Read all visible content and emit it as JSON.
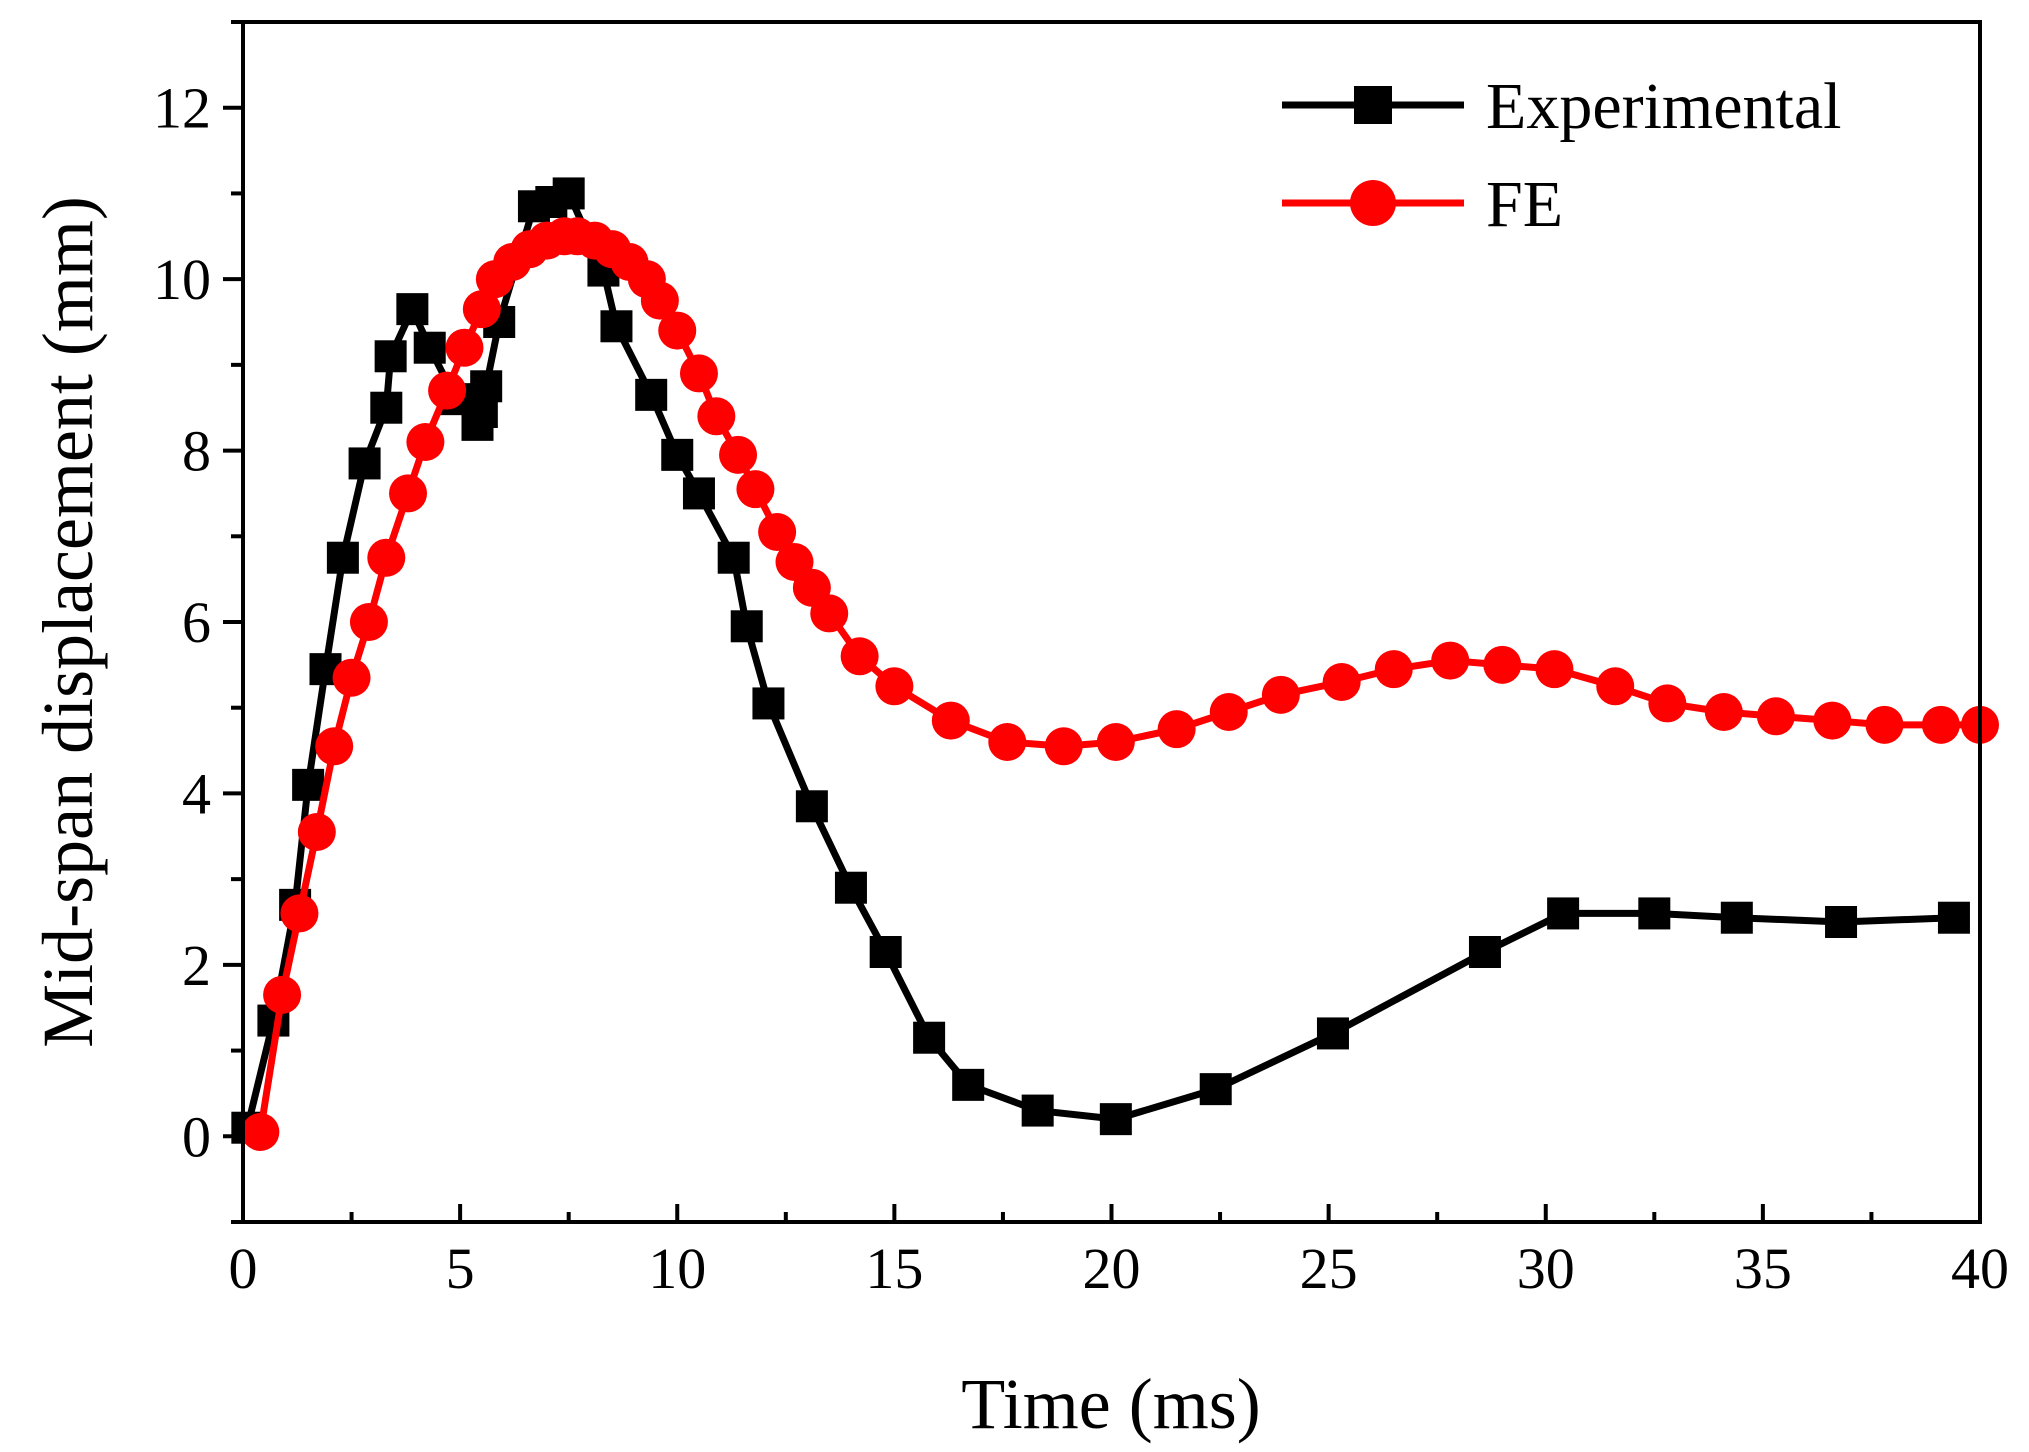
{
  "chart_data": {
    "type": "line",
    "title": "",
    "xlabel": "Time (ms)",
    "ylabel": "Mid-span displacement (mm)",
    "xlim": [
      0,
      40
    ],
    "ylim": [
      -1,
      13
    ],
    "xticks": [
      0,
      5,
      10,
      15,
      20,
      25,
      30,
      35,
      40
    ],
    "yticks": [
      0,
      2,
      4,
      6,
      8,
      10,
      12
    ],
    "x_tick_labels": [
      "0",
      "5",
      "10",
      "15",
      "20",
      "25",
      "30",
      "35",
      "40"
    ],
    "y_tick_labels": [
      "0",
      "2",
      "4",
      "6",
      "8",
      "10",
      "12"
    ],
    "legend_position": "top-right",
    "grid": false,
    "series": [
      {
        "name": "Experimental",
        "color": "#000000",
        "marker": "square",
        "x": [
          0.1,
          0.7,
          1.2,
          1.5,
          1.9,
          2.3,
          2.8,
          3.3,
          3.4,
          3.9,
          4.3,
          4.9,
          5.4,
          5.5,
          5.6,
          5.9,
          6.7,
          7.1,
          7.5,
          8.3,
          8.6,
          9.4,
          10.0,
          10.5,
          11.3,
          11.6,
          12.1,
          13.1,
          14.0,
          14.8,
          15.8,
          16.7,
          18.3,
          20.1,
          22.4,
          25.1,
          28.6,
          30.4,
          32.5,
          34.4,
          36.8,
          39.4
        ],
        "y": [
          0.1,
          1.35,
          2.7,
          4.1,
          5.45,
          6.75,
          7.85,
          8.5,
          9.1,
          9.65,
          9.2,
          8.6,
          8.3,
          8.45,
          8.75,
          9.5,
          10.85,
          10.9,
          11.0,
          10.1,
          9.45,
          8.65,
          7.95,
          7.5,
          6.75,
          5.95,
          5.05,
          3.85,
          2.9,
          2.15,
          1.15,
          0.6,
          0.3,
          0.2,
          0.55,
          1.2,
          2.15,
          2.6,
          2.6,
          2.55,
          2.5,
          2.55
        ]
      },
      {
        "name": "FE",
        "color": "#ff0000",
        "marker": "circle",
        "x": [
          0.4,
          0.9,
          1.3,
          1.7,
          2.1,
          2.5,
          2.9,
          3.3,
          3.8,
          4.2,
          4.7,
          5.1,
          5.5,
          5.8,
          6.2,
          6.6,
          7.0,
          7.4,
          7.7,
          8.1,
          8.5,
          8.9,
          9.3,
          9.6,
          10.0,
          10.5,
          10.9,
          11.4,
          11.8,
          12.3,
          12.7,
          13.1,
          13.5,
          14.2,
          15.0,
          16.3,
          17.6,
          18.9,
          20.1,
          21.5,
          22.7,
          23.9,
          25.3,
          26.5,
          27.8,
          29.0,
          30.2,
          31.6,
          32.8,
          34.1,
          35.3,
          36.6,
          37.8,
          39.1,
          40.0
        ],
        "y": [
          0.05,
          1.65,
          2.6,
          3.55,
          4.55,
          5.35,
          6.0,
          6.75,
          7.5,
          8.1,
          8.7,
          9.2,
          9.65,
          10.0,
          10.2,
          10.35,
          10.45,
          10.5,
          10.5,
          10.45,
          10.35,
          10.2,
          10.0,
          9.75,
          9.4,
          8.9,
          8.4,
          7.95,
          7.55,
          7.05,
          6.7,
          6.4,
          6.1,
          5.6,
          5.25,
          4.85,
          4.6,
          4.55,
          4.6,
          4.75,
          4.95,
          5.15,
          5.3,
          5.45,
          5.55,
          5.5,
          5.45,
          5.25,
          5.05,
          4.95,
          4.9,
          4.85,
          4.8,
          4.8,
          4.8
        ]
      }
    ]
  }
}
